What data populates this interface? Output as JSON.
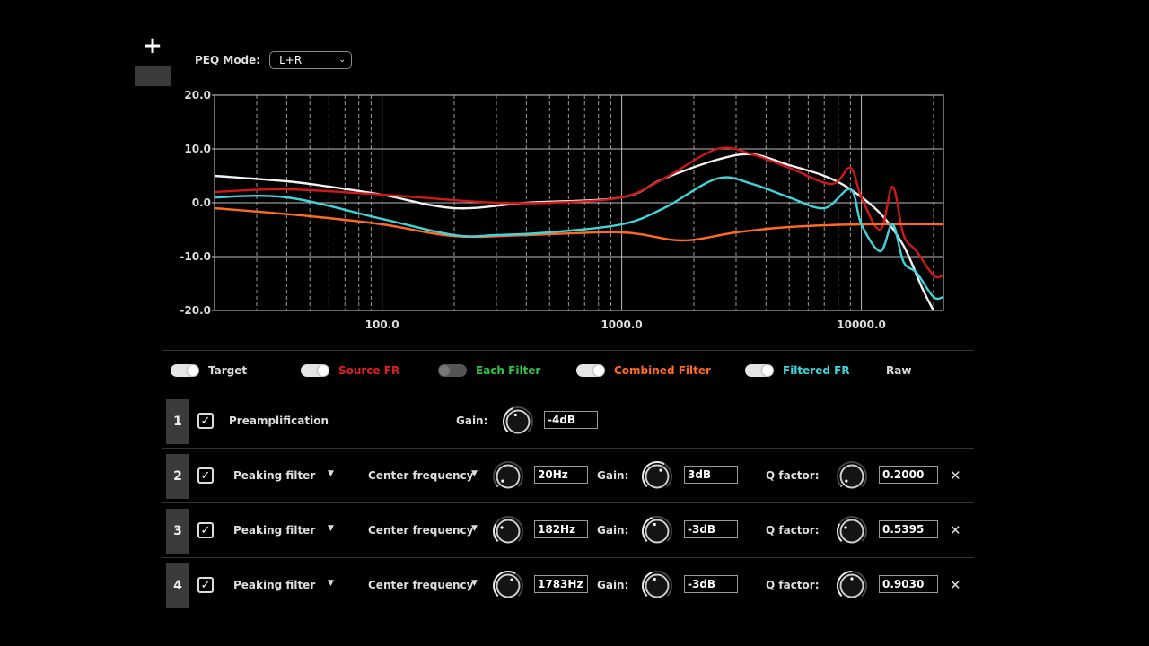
{
  "toolbar": {
    "add_label": "+"
  },
  "peq_mode": {
    "label": "PEQ Mode:",
    "value": "L+R"
  },
  "chart_data": {
    "type": "line",
    "x_scale": "log",
    "xlim": [
      20,
      22000
    ],
    "ylim": [
      -20,
      20
    ],
    "grid": true,
    "y_ticks": [
      "20.0",
      "10.0",
      "0.0",
      "-10.0",
      "-20.0"
    ],
    "x_ticks": [
      "100.0",
      "1000.0",
      "10000.0"
    ],
    "series": [
      {
        "name": "Target",
        "color": "#f2f2f2",
        "x": [
          20,
          40,
          60,
          100,
          200,
          400,
          1000,
          1500,
          2500,
          3500,
          5000,
          7000,
          9000,
          12000,
          15000,
          18000,
          20000
        ],
        "y": [
          5,
          4,
          3,
          1.5,
          -1,
          0,
          1,
          4.5,
          8,
          9,
          7,
          5,
          2.5,
          -2,
          -8,
          -16,
          -20
        ]
      },
      {
        "name": "Source FR",
        "color": "#d01818",
        "x": [
          20,
          40,
          100,
          200,
          300,
          500,
          1000,
          1500,
          2500,
          3500,
          5000,
          7500,
          9000,
          10000,
          12000,
          13500,
          15000,
          17000,
          20000,
          22000
        ],
        "y": [
          2,
          2.5,
          1.5,
          0.5,
          0,
          0,
          1,
          4.5,
          10,
          9,
          6.5,
          3.5,
          6.5,
          1,
          -5,
          3,
          -6,
          -9,
          -13.5,
          -13.5
        ]
      },
      {
        "name": "Combined Filter",
        "color": "#ff6a22",
        "x": [
          20,
          50,
          100,
          200,
          400,
          1000,
          1783,
          3000,
          5000,
          10000,
          22000
        ],
        "y": [
          -1,
          -2.5,
          -4,
          -6.2,
          -6,
          -5.5,
          -7,
          -5.5,
          -4.5,
          -4,
          -4
        ]
      },
      {
        "name": "Filtered FR",
        "color": "#3ed6dc",
        "x": [
          20,
          40,
          100,
          200,
          300,
          500,
          1000,
          1500,
          2500,
          3500,
          5000,
          7000,
          9000,
          10000,
          12000,
          13500,
          15000,
          17000,
          20000,
          22000
        ],
        "y": [
          1,
          1,
          -3,
          -6,
          -6,
          -5.5,
          -4,
          -1,
          4.5,
          3.5,
          1,
          -1,
          2.5,
          -4,
          -9,
          -4,
          -11,
          -13,
          -17.5,
          -17.5
        ]
      }
    ]
  },
  "legend": [
    {
      "label": "Target",
      "color": "#dddddd",
      "on": true
    },
    {
      "label": "Source FR",
      "color": "#e02020",
      "on": true
    },
    {
      "label": "Each Filter",
      "color": "#2fc24a",
      "on": false
    },
    {
      "label": "Combined Filter",
      "color": "#ff6a22",
      "on": true
    },
    {
      "label": "Filtered FR",
      "color": "#3ed6dc",
      "on": true
    },
    {
      "label": "Raw",
      "color": "#dddddd"
    }
  ],
  "filters": [
    {
      "index": "1",
      "name": "Preamplification",
      "gain_label": "Gain:",
      "gain": "-4dB"
    },
    {
      "index": "2",
      "type": "Peaking filter",
      "freq_label": "Center frequency",
      "freq": "20Hz",
      "gain_label": "Gain:",
      "gain": "3dB",
      "q_label": "Q factor:",
      "q": "0.2000"
    },
    {
      "index": "3",
      "type": "Peaking filter",
      "freq_label": "Center frequency",
      "freq": "182Hz",
      "gain_label": "Gain:",
      "gain": "-3dB",
      "q_label": "Q factor:",
      "q": "0.5395"
    },
    {
      "index": "4",
      "type": "Peaking filter",
      "freq_label": "Center frequency",
      "freq": "1783Hz",
      "gain_label": "Gain:",
      "gain": "-3dB",
      "q_label": "Q factor:",
      "q": "0.9030"
    }
  ],
  "icons": {
    "check": "check-icon",
    "close": "close-icon",
    "dropdown": "caret-down-icon",
    "knob": "rotary-knob-icon"
  },
  "symbols": {
    "check": "✓",
    "close": "✕",
    "caret": "▼",
    "chevron": "⌄"
  }
}
